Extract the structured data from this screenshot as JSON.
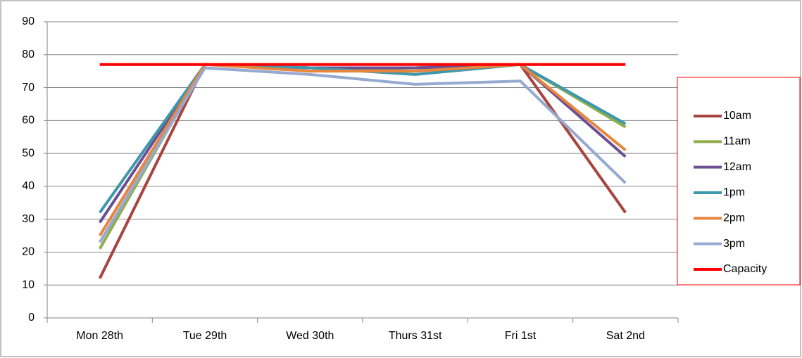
{
  "chart_data": {
    "type": "line",
    "categories": [
      "Mon 28th",
      "Tue 29th",
      "Wed 30th",
      "Thurs 31st",
      "Fri 1st",
      "Sat 2nd"
    ],
    "series": [
      {
        "name": "10am",
        "color": "#a84440",
        "values": [
          12,
          77,
          76,
          76,
          77,
          32
        ]
      },
      {
        "name": "11am",
        "color": "#8fae4a",
        "values": [
          21,
          77,
          76,
          75,
          77,
          58
        ]
      },
      {
        "name": "12am",
        "color": "#6c4f93",
        "values": [
          29,
          77,
          76,
          76,
          77,
          49
        ]
      },
      {
        "name": "1pm",
        "color": "#3d97ad",
        "values": [
          32,
          77,
          76,
          74,
          77,
          59
        ]
      },
      {
        "name": "2pm",
        "color": "#e8853d",
        "values": [
          25,
          77,
          75,
          75,
          77,
          51
        ]
      },
      {
        "name": "3pm",
        "color": "#95a9d1",
        "values": [
          23,
          76,
          74,
          71,
          72,
          41
        ]
      },
      {
        "name": "Capacity",
        "color": "#ff0000",
        "values": [
          77,
          77,
          77,
          77,
          77,
          77
        ]
      }
    ],
    "ylim": [
      0,
      90
    ],
    "yticks": [
      0,
      10,
      20,
      30,
      40,
      50,
      60,
      70,
      80,
      90
    ],
    "grid": true,
    "legend": "right"
  }
}
